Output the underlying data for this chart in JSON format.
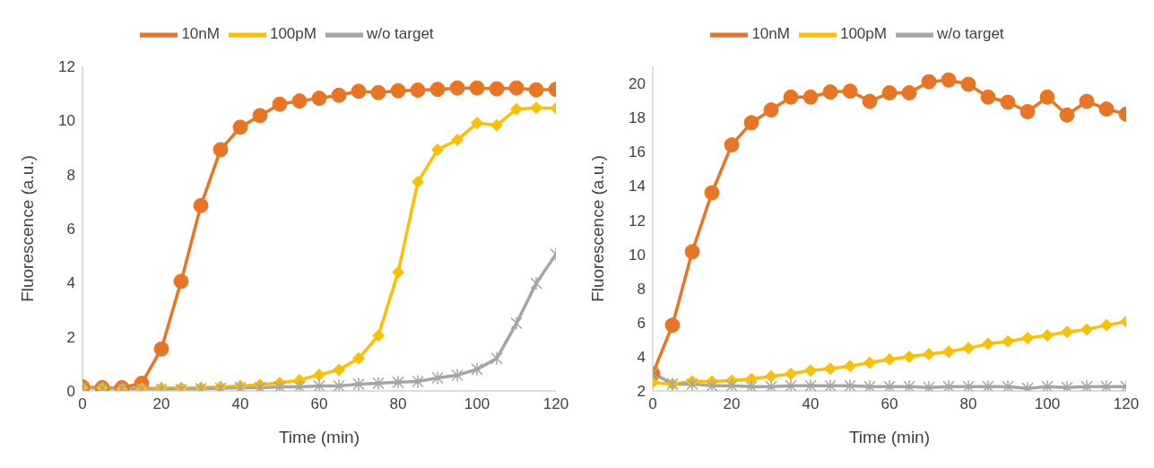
{
  "chart_data": [
    {
      "type": "line",
      "xlabel": "Time (min)",
      "ylabel": "Fluorescence (a.u.)",
      "x": [
        0,
        5,
        10,
        15,
        20,
        25,
        30,
        35,
        40,
        45,
        50,
        55,
        60,
        65,
        70,
        75,
        80,
        85,
        90,
        95,
        100,
        105,
        110,
        115,
        120
      ],
      "xlim": [
        0,
        120
      ],
      "xticks": [
        0,
        20,
        40,
        60,
        80,
        100,
        120
      ],
      "ylim": [
        0,
        12
      ],
      "yticks": [
        0,
        2,
        4,
        6,
        8,
        10,
        12
      ],
      "grid": false,
      "legend": "top",
      "series": [
        {
          "name": "10nM",
          "color": "#e87524",
          "marker": "circle",
          "values": [
            0.15,
            0.12,
            0.12,
            0.28,
            1.55,
            4.05,
            6.85,
            8.92,
            9.75,
            10.18,
            10.6,
            10.72,
            10.82,
            10.93,
            11.08,
            11.03,
            11.1,
            11.12,
            11.15,
            11.2,
            11.2,
            11.17,
            11.2,
            11.13,
            11.15
          ]
        },
        {
          "name": "100pM",
          "color": "#fcbf04",
          "marker": "diamond",
          "values": [
            0.12,
            0.12,
            0.06,
            0.1,
            0.12,
            0.12,
            0.12,
            0.15,
            0.18,
            0.22,
            0.3,
            0.4,
            0.6,
            0.78,
            1.2,
            2.05,
            4.38,
            7.72,
            8.92,
            9.28,
            9.9,
            9.82,
            10.42,
            10.47,
            10.45
          ]
        },
        {
          "name": "w/o target",
          "color": "#a5a5a5",
          "marker": "cross",
          "values": [
            0.12,
            0.1,
            0.1,
            0.05,
            0.05,
            0.05,
            0.08,
            0.1,
            0.12,
            0.12,
            0.15,
            0.15,
            0.18,
            0.18,
            0.25,
            0.28,
            0.32,
            0.35,
            0.48,
            0.58,
            0.8,
            1.2,
            2.5,
            3.98,
            5.05
          ]
        }
      ]
    },
    {
      "type": "line",
      "xlabel": "Time (min)",
      "ylabel": "Fluorescence (a.u.)",
      "x": [
        0,
        5,
        10,
        15,
        20,
        25,
        30,
        35,
        40,
        45,
        50,
        55,
        60,
        65,
        70,
        75,
        80,
        85,
        90,
        95,
        100,
        105,
        110,
        115,
        120
      ],
      "xlim": [
        0,
        120
      ],
      "xticks": [
        0,
        20,
        40,
        60,
        80,
        100,
        120
      ],
      "ylim": [
        2,
        21
      ],
      "yticks": [
        2,
        4,
        6,
        8,
        10,
        12,
        14,
        16,
        18,
        20
      ],
      "grid": false,
      "legend": "top",
      "series": [
        {
          "name": "10nM",
          "color": "#e87524",
          "marker": "circle",
          "values": [
            3.0,
            5.85,
            10.15,
            13.6,
            16.4,
            17.7,
            18.45,
            19.2,
            19.2,
            19.5,
            19.55,
            18.95,
            19.45,
            19.45,
            20.1,
            20.2,
            19.95,
            19.2,
            18.9,
            18.35,
            19.2,
            18.15,
            18.95,
            18.5,
            18.2
          ]
        },
        {
          "name": "100pM",
          "color": "#fcbf04",
          "marker": "diamond",
          "values": [
            2.5,
            2.4,
            2.55,
            2.55,
            2.6,
            2.7,
            2.85,
            3.0,
            3.2,
            3.3,
            3.45,
            3.65,
            3.85,
            4.0,
            4.15,
            4.3,
            4.5,
            4.75,
            4.9,
            5.1,
            5.25,
            5.45,
            5.6,
            5.85,
            6.05
          ]
        },
        {
          "name": "w/o target",
          "color": "#a5a5a5",
          "marker": "cross",
          "values": [
            3.05,
            2.4,
            2.4,
            2.3,
            2.3,
            2.25,
            2.25,
            2.3,
            2.3,
            2.3,
            2.3,
            2.25,
            2.25,
            2.25,
            2.2,
            2.25,
            2.25,
            2.25,
            2.25,
            2.15,
            2.25,
            2.2,
            2.25,
            2.25,
            2.25
          ]
        }
      ]
    }
  ]
}
